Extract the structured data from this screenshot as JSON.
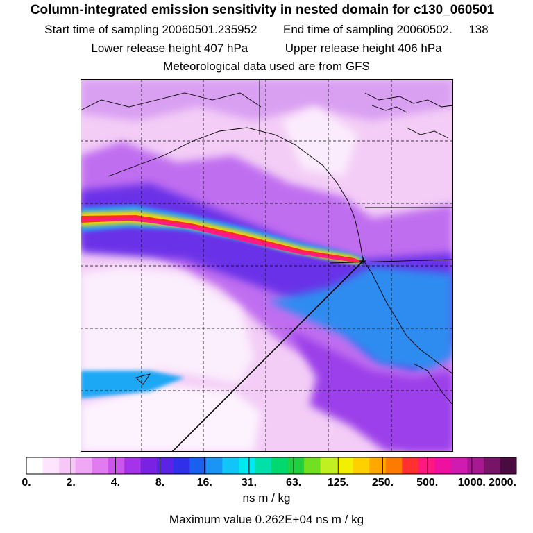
{
  "title": "Column-integrated emission sensitivity in nested domain for c130_060501",
  "sampling": {
    "start_label": "Start time of sampling",
    "start_value": "20060501.235952",
    "end_label": "End time of sampling",
    "end_value": "20060502.",
    "end_suffix": "138"
  },
  "release": {
    "lower_label": "Lower release height",
    "lower_value": "407 hPa",
    "upper_label": "Upper release height",
    "upper_value": "406 hPa"
  },
  "met_note": "Meteorological data used are from GFS",
  "colorbar": {
    "tick_labels": [
      "0.",
      "2.",
      "4.",
      "8.",
      "16.",
      "31.",
      "63.",
      "125.",
      "250.",
      "500.",
      "1000.",
      "2000."
    ],
    "colors": [
      "#ffffff",
      "#fde6fd",
      "#f7c8f7",
      "#f0a8f4",
      "#e07cf0",
      "#cc55ee",
      "#a533ea",
      "#7a22e2",
      "#5a23e6",
      "#3030e8",
      "#1860f0",
      "#1a95f5",
      "#12c5f8",
      "#00e8f0",
      "#00e0a8",
      "#00d870",
      "#20d040",
      "#70e020",
      "#c0f020",
      "#f0f000",
      "#ffd000",
      "#ffa800",
      "#ff7a00",
      "#ff3030",
      "#ff1880",
      "#f010a0",
      "#d01ab0",
      "#a81890",
      "#781468",
      "#4a0c40"
    ],
    "units": "ns m / kg"
  },
  "max_value_text": "Maximum value  0.262E+04 ns m / kg",
  "icons": {
    "release_point": "release-point-icon",
    "coastline": "coastline-icon"
  }
}
